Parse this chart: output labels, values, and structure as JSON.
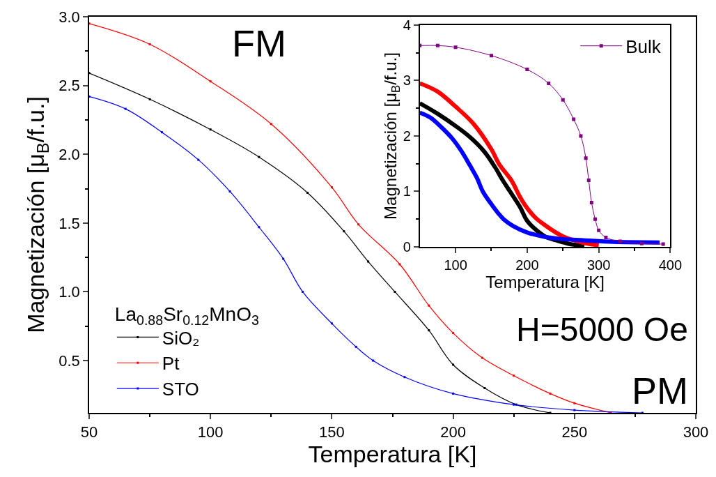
{
  "chart_data": [
    {
      "type": "line",
      "xlabel": "Temperatura [K]",
      "ylabel": "Magnetización [μ$_{B}$/f.u.]",
      "xlim": [
        50,
        300
      ],
      "xticks": [
        50,
        100,
        150,
        200,
        250,
        300
      ],
      "ylim": [
        0.12,
        3.0
      ],
      "yticks": [
        0.5,
        {
          "value": 1,
          "label": "1.0"
        },
        1.5,
        {
          "value": 2,
          "label": "2.0"
        },
        2.5,
        {
          "value": 3,
          "label": "3.0"
        }
      ],
      "legend": "bottom left",
      "legend_title": "La$_{0.88}$Sr$_{0.12}$MnO$_{3}$",
      "marker": "square",
      "annotations": [
        "FM",
        "H=5000 Oe",
        "PM"
      ],
      "series": [
        {
          "name": "SiO₂",
          "color": "#000000",
          "x": [
            50,
            75,
            100,
            120,
            140,
            155,
            165,
            176,
            190,
            200,
            213,
            226,
            240
          ],
          "values": [
            2.59,
            2.4,
            2.18,
            1.98,
            1.72,
            1.44,
            1.22,
            1.0,
            0.72,
            0.47,
            0.3,
            0.18,
            0.12
          ]
        },
        {
          "name": "Pt",
          "color": "#ff0000",
          "x": [
            50,
            75,
            100,
            125,
            150,
            161,
            178,
            190,
            200,
            212,
            225,
            240,
            250,
            265
          ],
          "values": [
            2.95,
            2.8,
            2.53,
            2.22,
            1.76,
            1.49,
            1.2,
            0.9,
            0.7,
            0.52,
            0.39,
            0.26,
            0.19,
            0.12
          ]
        },
        {
          "name": "STO",
          "color": "#0000ff",
          "x": [
            50,
            65,
            80,
            95,
            108,
            120,
            130,
            138,
            150,
            160,
            167,
            180,
            200,
            225,
            250,
            278
          ],
          "values": [
            2.42,
            2.33,
            2.16,
            1.96,
            1.73,
            1.47,
            1.24,
            1.0,
            0.77,
            0.6,
            0.5,
            0.38,
            0.26,
            0.18,
            0.14,
            0.12
          ]
        }
      ]
    },
    {
      "type": "line",
      "xlabel": "Temperatura [K]",
      "ylabel": "Magnetización [μ$_{B}$/f.u.]",
      "xlim": [
        50,
        400
      ],
      "xticks": [
        100,
        200,
        300,
        400
      ],
      "ylim": [
        0,
        4
      ],
      "yticks": [
        0,
        1,
        2,
        3,
        4
      ],
      "legend": "top right",
      "series": [
        {
          "color": "#000000",
          "marker": "none",
          "x": [
            50,
            75,
            100,
            120,
            140,
            155,
            165,
            176,
            190,
            200,
            213,
            226,
            240,
            260,
            280
          ],
          "values": [
            2.59,
            2.4,
            2.18,
            1.98,
            1.72,
            1.44,
            1.22,
            1.0,
            0.72,
            0.47,
            0.3,
            0.18,
            0.12,
            0.05,
            0.02
          ]
        },
        {
          "color": "#ff0000",
          "marker": "none",
          "x": [
            50,
            75,
            100,
            125,
            150,
            161,
            178,
            190,
            200,
            212,
            225,
            240,
            250,
            265,
            280,
            300
          ],
          "values": [
            2.95,
            2.8,
            2.53,
            2.22,
            1.76,
            1.49,
            1.2,
            0.9,
            0.7,
            0.52,
            0.39,
            0.26,
            0.19,
            0.12,
            0.07,
            0.03
          ]
        },
        {
          "color": "#0000ff",
          "marker": "none",
          "x": [
            50,
            65,
            80,
            95,
            108,
            120,
            130,
            138,
            150,
            160,
            167,
            180,
            200,
            225,
            250,
            278,
            320,
            385
          ],
          "values": [
            2.42,
            2.33,
            2.16,
            1.96,
            1.73,
            1.47,
            1.24,
            1.0,
            0.77,
            0.6,
            0.5,
            0.38,
            0.26,
            0.18,
            0.14,
            0.12,
            0.09,
            0.08
          ]
        },
        {
          "name": "Bulk",
          "color": "#800080",
          "marker": "square",
          "x": [
            50,
            75,
            100,
            150,
            200,
            230,
            250,
            265,
            275,
            282,
            286,
            290,
            295,
            300,
            310,
            330,
            360,
            390
          ],
          "values": [
            3.63,
            3.63,
            3.6,
            3.45,
            3.2,
            2.95,
            2.65,
            2.3,
            2.0,
            1.6,
            1.2,
            0.8,
            0.5,
            0.3,
            0.17,
            0.1,
            0.06,
            0.05
          ]
        }
      ]
    }
  ]
}
